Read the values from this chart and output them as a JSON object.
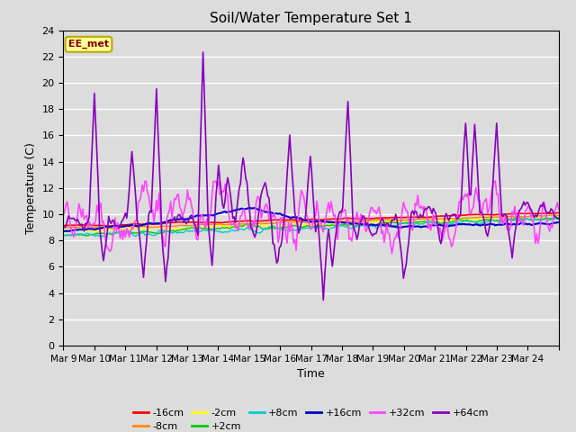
{
  "title": "Soil/Water Temperature Set 1",
  "xlabel": "Time",
  "ylabel": "Temperature (C)",
  "ylim": [
    0,
    24
  ],
  "yticks": [
    0,
    2,
    4,
    6,
    8,
    10,
    12,
    14,
    16,
    18,
    20,
    22,
    24
  ],
  "x_labels": [
    "Mar 9",
    "Mar 10",
    "Mar 11",
    "Mar 12",
    "Mar 13",
    "Mar 14",
    "Mar 15",
    "Mar 16",
    "Mar 17",
    "Mar 18",
    "Mar 19",
    "Mar 20",
    "Mar 21",
    "Mar 22",
    "Mar 23",
    "Mar 24"
  ],
  "bg_color": "#dcdcdc",
  "annotation_text": "EE_met",
  "annotation_bg": "#ffff99",
  "annotation_border": "#bbaa00",
  "series": [
    {
      "label": "-16cm",
      "color": "#ff0000"
    },
    {
      "label": "-8cm",
      "color": "#ff8800"
    },
    {
      "label": "-2cm",
      "color": "#ffff00"
    },
    {
      "label": "+2cm",
      "color": "#00cc00"
    },
    {
      "label": "+8cm",
      "color": "#00cccc"
    },
    {
      "label": "+16cm",
      "color": "#0000cc"
    },
    {
      "label": "+32cm",
      "color": "#ff44ff"
    },
    {
      "label": "+64cm",
      "color": "#8800bb"
    }
  ],
  "n_days": 16,
  "pts_per_day": 24
}
